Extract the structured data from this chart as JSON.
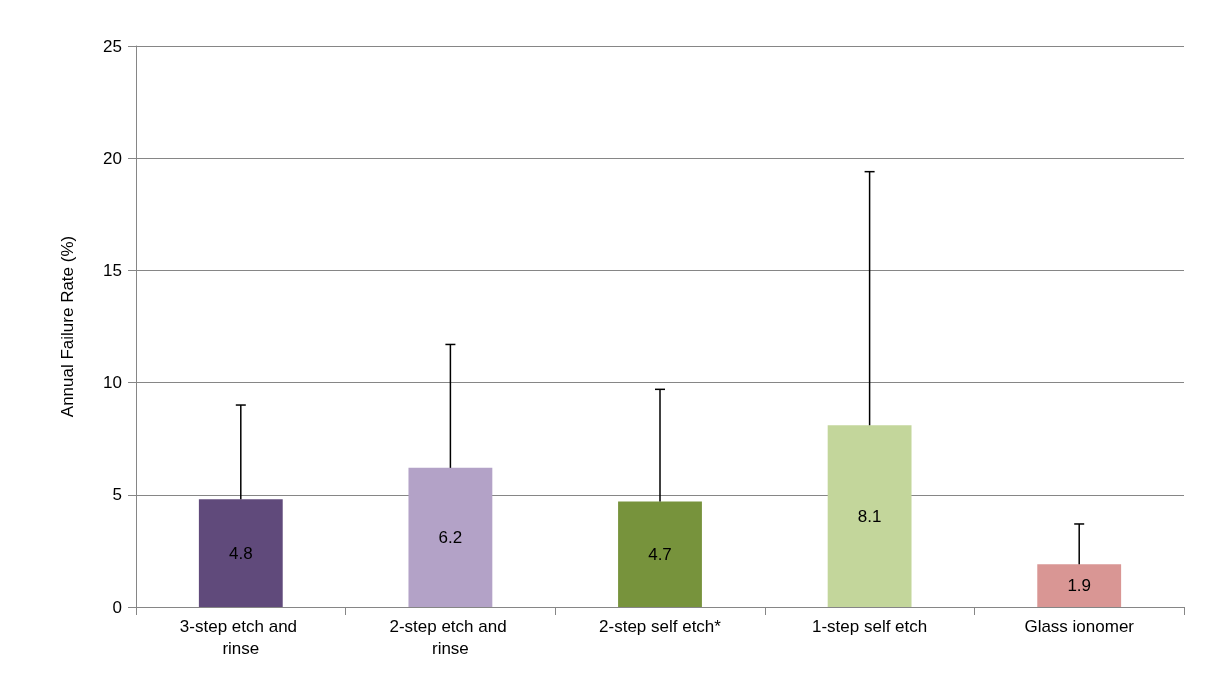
{
  "chart_data": {
    "type": "bar",
    "ylabel": "Annual Failure Rate (%)",
    "categories": [
      "3-step etch and rinse",
      "2-step etch and rinse",
      "2-step self etch*",
      "1-step self etch",
      "Glass ionomer"
    ],
    "values": [
      4.8,
      6.2,
      4.7,
      8.1,
      1.9
    ],
    "colors": [
      "#604a7b",
      "#b3a2c7",
      "#77933c",
      "#c3d69b",
      "#d99694"
    ],
    "errors": [
      [
        4.8,
        9.0
      ],
      [
        6.2,
        11.7
      ],
      [
        4.7,
        9.7
      ],
      [
        8.1,
        19.4
      ],
      [
        1.9,
        3.7
      ]
    ],
    "ylim": [
      0,
      25
    ],
    "yticks": [
      0,
      5,
      10,
      15,
      20,
      25
    ],
    "grid": "y",
    "data_labels": true
  }
}
